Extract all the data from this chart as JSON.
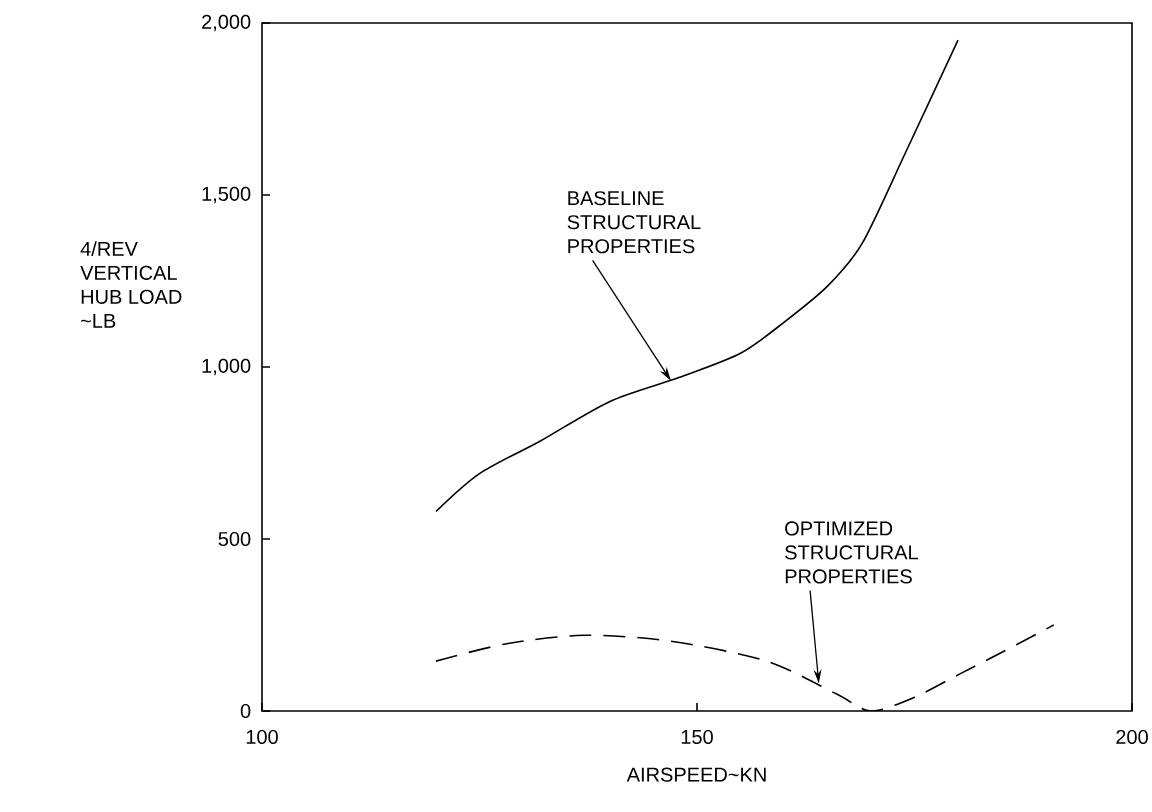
{
  "chart_data": {
    "type": "line",
    "xlabel": "AIRSPEED~KN",
    "ylabel": "4/REV VERTICAL HUB LOAD ~LB",
    "x": [
      120,
      125,
      132,
      140,
      148,
      155,
      160,
      165,
      169,
      174,
      180
    ],
    "series": [
      {
        "color": "#000000",
        "line_style": "solid",
        "values": [
          580,
          690,
          785,
          900,
          970,
          1040,
          1130,
          1235,
          1360,
          1625,
          1950
        ]
      },
      {
        "color": "#000000",
        "line_style": "dashed",
        "x": [
          120,
          128,
          137,
          147,
          158,
          166,
          170,
          175,
          180,
          185,
          191
        ],
        "values": [
          145,
          195,
          220,
          203,
          145,
          50,
          0,
          40,
          105,
          170,
          250
        ]
      }
    ],
    "xlim": [
      100,
      200
    ],
    "ylim": [
      0,
      2000
    ],
    "xticks": [
      100,
      150,
      200
    ],
    "yticks": [
      0,
      500,
      {
        "value": 1000,
        "label": "1,000"
      },
      {
        "value": 1500,
        "label": "1,500"
      },
      {
        "value": 2000,
        "label": "2,000"
      }
    ],
    "grid": false,
    "annotations": [
      {
        "text": "BASELINE STRUCTURAL PROPERTIES",
        "x": 147,
        "y": 960
      },
      {
        "text": "OPTIMIZED STRUCTURAL PROPERTIES",
        "x": 164,
        "y": 80
      }
    ]
  }
}
